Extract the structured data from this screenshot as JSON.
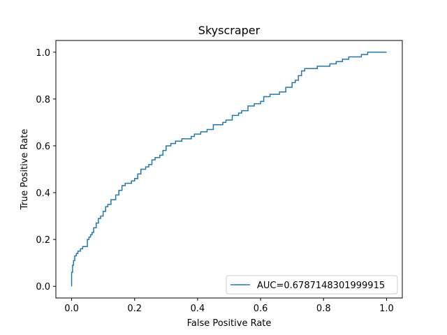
{
  "chart_data": {
    "type": "line",
    "title": "Skyscraper",
    "xlabel": "False Positive Rate",
    "ylabel": "True Positive Rate",
    "xlim": [
      -0.05,
      1.05
    ],
    "ylim": [
      -0.05,
      1.05
    ],
    "xticks": [
      0.0,
      0.2,
      0.4,
      0.6,
      0.8,
      1.0
    ],
    "yticks": [
      0.0,
      0.2,
      0.4,
      0.6,
      0.8,
      1.0
    ],
    "xtick_labels": [
      "0.0",
      "0.2",
      "0.4",
      "0.6",
      "0.8",
      "1.0"
    ],
    "ytick_labels": [
      "0.0",
      "0.2",
      "0.4",
      "0.6",
      "0.8",
      "1.0"
    ],
    "grid": false,
    "legend_position": "lower-right",
    "series": [
      {
        "name": "AUC=0.6787148301999915",
        "color": "#1f77b4",
        "x": [
          0.0,
          0.0,
          0.003,
          0.003,
          0.006,
          0.006,
          0.01,
          0.01,
          0.015,
          0.015,
          0.02,
          0.02,
          0.028,
          0.028,
          0.035,
          0.035,
          0.05,
          0.05,
          0.055,
          0.055,
          0.06,
          0.06,
          0.065,
          0.065,
          0.07,
          0.07,
          0.078,
          0.078,
          0.085,
          0.085,
          0.092,
          0.092,
          0.1,
          0.1,
          0.108,
          0.108,
          0.115,
          0.115,
          0.125,
          0.125,
          0.14,
          0.14,
          0.15,
          0.15,
          0.16,
          0.16,
          0.17,
          0.17,
          0.19,
          0.19,
          0.2,
          0.2,
          0.21,
          0.21,
          0.22,
          0.22,
          0.235,
          0.235,
          0.245,
          0.245,
          0.255,
          0.255,
          0.265,
          0.265,
          0.28,
          0.28,
          0.29,
          0.29,
          0.3,
          0.3,
          0.315,
          0.315,
          0.33,
          0.33,
          0.35,
          0.35,
          0.38,
          0.38,
          0.39,
          0.39,
          0.41,
          0.41,
          0.43,
          0.43,
          0.45,
          0.45,
          0.48,
          0.48,
          0.49,
          0.49,
          0.51,
          0.51,
          0.53,
          0.53,
          0.54,
          0.54,
          0.56,
          0.56,
          0.58,
          0.58,
          0.6,
          0.6,
          0.61,
          0.61,
          0.63,
          0.63,
          0.66,
          0.66,
          0.68,
          0.68,
          0.7,
          0.7,
          0.71,
          0.71,
          0.72,
          0.72,
          0.73,
          0.73,
          0.74,
          0.74,
          0.78,
          0.78,
          0.82,
          0.82,
          0.84,
          0.84,
          0.86,
          0.86,
          0.88,
          0.88,
          0.92,
          0.92,
          0.94,
          0.94,
          0.96,
          0.96,
          1.0
        ],
        "y": [
          0.0,
          0.06,
          0.06,
          0.09,
          0.09,
          0.11,
          0.11,
          0.13,
          0.13,
          0.14,
          0.14,
          0.15,
          0.15,
          0.16,
          0.16,
          0.17,
          0.17,
          0.2,
          0.2,
          0.21,
          0.21,
          0.22,
          0.22,
          0.23,
          0.23,
          0.25,
          0.25,
          0.27,
          0.27,
          0.29,
          0.29,
          0.3,
          0.3,
          0.32,
          0.32,
          0.34,
          0.34,
          0.35,
          0.35,
          0.37,
          0.37,
          0.39,
          0.39,
          0.41,
          0.41,
          0.43,
          0.43,
          0.44,
          0.44,
          0.45,
          0.45,
          0.46,
          0.46,
          0.48,
          0.48,
          0.5,
          0.5,
          0.51,
          0.51,
          0.52,
          0.52,
          0.54,
          0.54,
          0.55,
          0.55,
          0.56,
          0.56,
          0.58,
          0.58,
          0.6,
          0.6,
          0.61,
          0.61,
          0.62,
          0.62,
          0.63,
          0.63,
          0.64,
          0.64,
          0.65,
          0.65,
          0.66,
          0.66,
          0.67,
          0.67,
          0.69,
          0.69,
          0.7,
          0.7,
          0.71,
          0.71,
          0.73,
          0.73,
          0.74,
          0.74,
          0.75,
          0.75,
          0.77,
          0.77,
          0.78,
          0.78,
          0.79,
          0.79,
          0.81,
          0.81,
          0.82,
          0.82,
          0.83,
          0.83,
          0.85,
          0.85,
          0.87,
          0.87,
          0.88,
          0.88,
          0.9,
          0.9,
          0.92,
          0.92,
          0.93,
          0.93,
          0.94,
          0.94,
          0.95,
          0.95,
          0.96,
          0.96,
          0.97,
          0.97,
          0.98,
          0.98,
          0.99,
          0.99,
          1.0,
          1.0,
          1.0,
          1.0
        ]
      }
    ]
  }
}
